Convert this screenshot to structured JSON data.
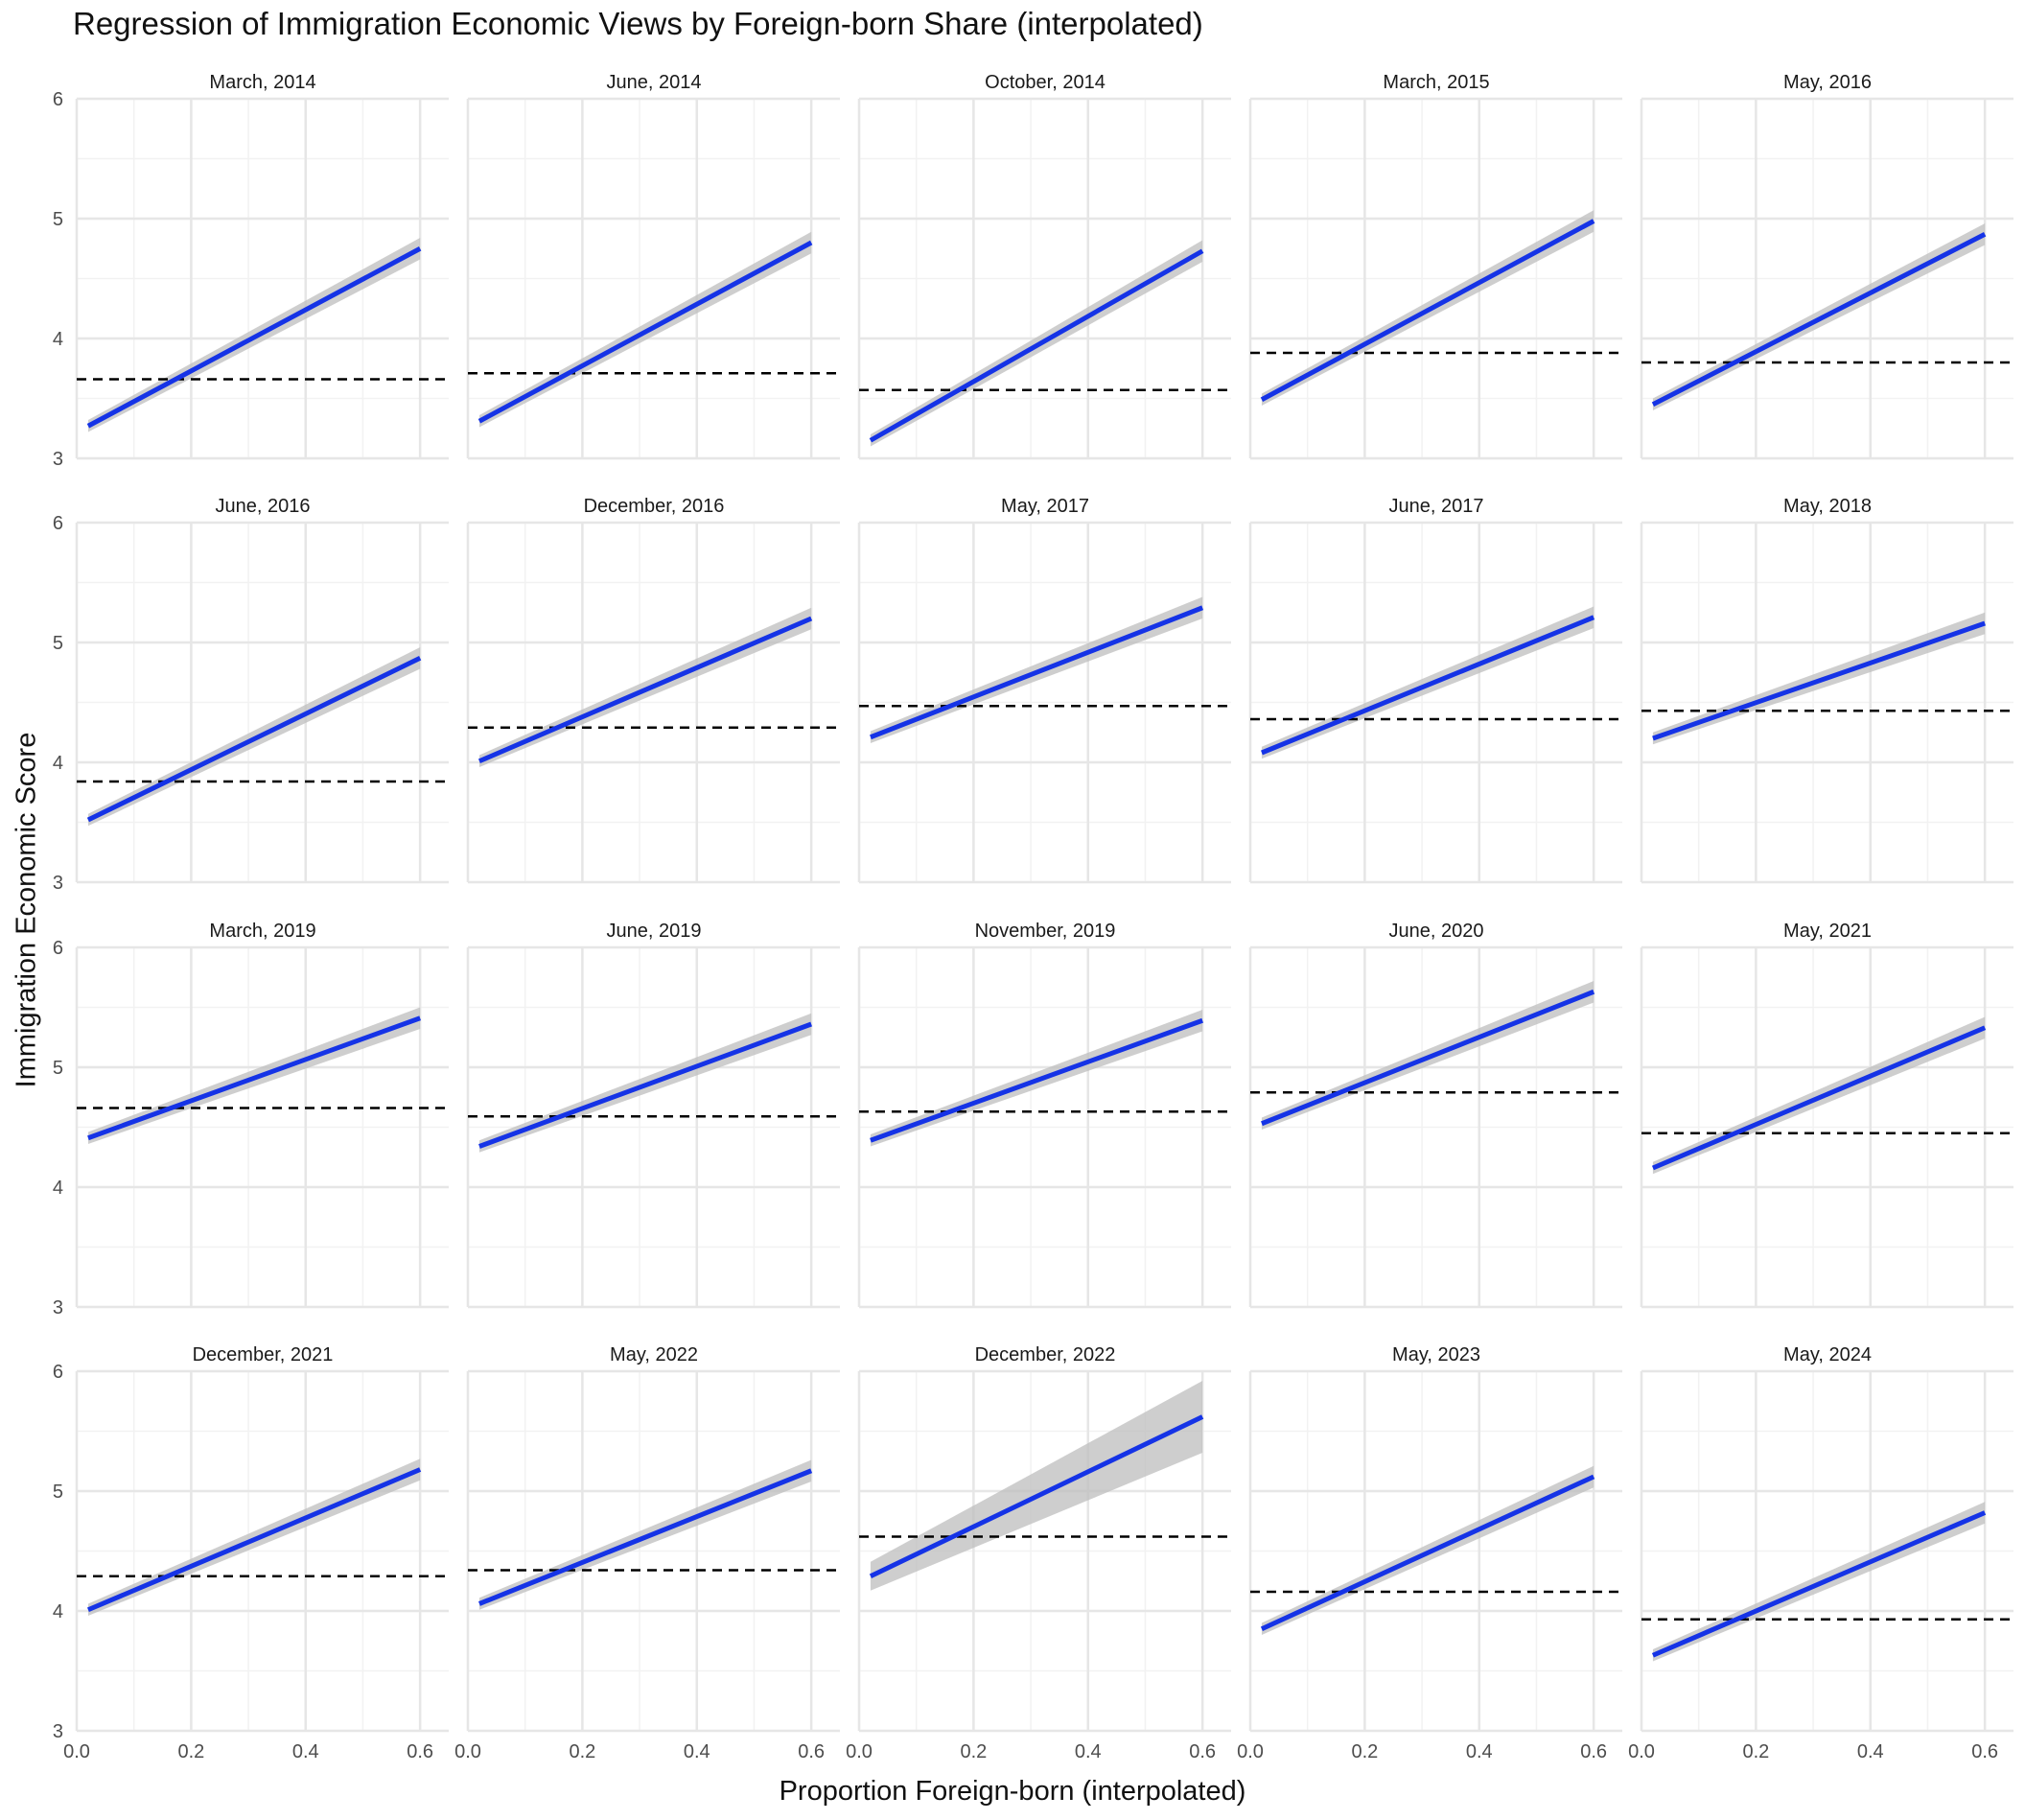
{
  "chart_data": {
    "type": "line",
    "title": "Regression of Immigration Economic Views by Foreign-born Share (interpolated)",
    "xlabel": "Proportion Foreign-born (interpolated)",
    "ylabel": "Immigration Economic Score",
    "xlim": [
      0,
      0.65
    ],
    "ylim": [
      3,
      6
    ],
    "x_ticks": [
      "0.0",
      "0.2",
      "0.4",
      "0.6"
    ],
    "y_ticks": [
      "3",
      "4",
      "5",
      "6"
    ],
    "grid": true,
    "legend": "none",
    "facets": [
      {
        "label": "March, 2014",
        "x_start": 0.02,
        "y_start": 3.27,
        "x_end": 0.6,
        "y_end": 4.75,
        "band_start": 0.05,
        "band_end": 0.09,
        "mean": 3.66
      },
      {
        "label": "June, 2014",
        "x_start": 0.02,
        "y_start": 3.31,
        "x_end": 0.6,
        "y_end": 4.8,
        "band_start": 0.05,
        "band_end": 0.09,
        "mean": 3.71
      },
      {
        "label": "October, 2014",
        "x_start": 0.02,
        "y_start": 3.15,
        "x_end": 0.6,
        "y_end": 4.73,
        "band_start": 0.05,
        "band_end": 0.09,
        "mean": 3.57
      },
      {
        "label": "March, 2015",
        "x_start": 0.02,
        "y_start": 3.49,
        "x_end": 0.6,
        "y_end": 4.98,
        "band_start": 0.05,
        "band_end": 0.09,
        "mean": 3.88
      },
      {
        "label": "May, 2016",
        "x_start": 0.02,
        "y_start": 3.45,
        "x_end": 0.6,
        "y_end": 4.87,
        "band_start": 0.05,
        "band_end": 0.09,
        "mean": 3.8
      },
      {
        "label": "June, 2016",
        "x_start": 0.02,
        "y_start": 3.52,
        "x_end": 0.6,
        "y_end": 4.87,
        "band_start": 0.05,
        "band_end": 0.09,
        "mean": 3.84
      },
      {
        "label": "December, 2016",
        "x_start": 0.02,
        "y_start": 4.01,
        "x_end": 0.6,
        "y_end": 5.2,
        "band_start": 0.05,
        "band_end": 0.09,
        "mean": 4.29
      },
      {
        "label": "May, 2017",
        "x_start": 0.02,
        "y_start": 4.21,
        "x_end": 0.6,
        "y_end": 5.29,
        "band_start": 0.05,
        "band_end": 0.09,
        "mean": 4.47
      },
      {
        "label": "June, 2017",
        "x_start": 0.02,
        "y_start": 4.08,
        "x_end": 0.6,
        "y_end": 5.21,
        "band_start": 0.05,
        "band_end": 0.09,
        "mean": 4.36
      },
      {
        "label": "May, 2018",
        "x_start": 0.02,
        "y_start": 4.2,
        "x_end": 0.6,
        "y_end": 5.16,
        "band_start": 0.05,
        "band_end": 0.09,
        "mean": 4.43
      },
      {
        "label": "March, 2019",
        "x_start": 0.02,
        "y_start": 4.41,
        "x_end": 0.6,
        "y_end": 5.41,
        "band_start": 0.05,
        "band_end": 0.09,
        "mean": 4.66
      },
      {
        "label": "June, 2019",
        "x_start": 0.02,
        "y_start": 4.34,
        "x_end": 0.6,
        "y_end": 5.36,
        "band_start": 0.05,
        "band_end": 0.09,
        "mean": 4.59
      },
      {
        "label": "November, 2019",
        "x_start": 0.02,
        "y_start": 4.39,
        "x_end": 0.6,
        "y_end": 5.39,
        "band_start": 0.05,
        "band_end": 0.09,
        "mean": 4.63
      },
      {
        "label": "June, 2020",
        "x_start": 0.02,
        "y_start": 4.53,
        "x_end": 0.6,
        "y_end": 5.63,
        "band_start": 0.05,
        "band_end": 0.09,
        "mean": 4.79
      },
      {
        "label": "May, 2021",
        "x_start": 0.02,
        "y_start": 4.16,
        "x_end": 0.6,
        "y_end": 5.33,
        "band_start": 0.05,
        "band_end": 0.09,
        "mean": 4.45
      },
      {
        "label": "December, 2021",
        "x_start": 0.02,
        "y_start": 4.01,
        "x_end": 0.6,
        "y_end": 5.18,
        "band_start": 0.05,
        "band_end": 0.09,
        "mean": 4.29
      },
      {
        "label": "May, 2022",
        "x_start": 0.02,
        "y_start": 4.06,
        "x_end": 0.6,
        "y_end": 5.17,
        "band_start": 0.05,
        "band_end": 0.09,
        "mean": 4.34
      },
      {
        "label": "December, 2022",
        "x_start": 0.02,
        "y_start": 4.29,
        "x_end": 0.6,
        "y_end": 5.62,
        "band_start": 0.12,
        "band_end": 0.3,
        "mean": 4.62
      },
      {
        "label": "May, 2023",
        "x_start": 0.02,
        "y_start": 3.85,
        "x_end": 0.6,
        "y_end": 5.12,
        "band_start": 0.05,
        "band_end": 0.09,
        "mean": 4.16
      },
      {
        "label": "May, 2024",
        "x_start": 0.02,
        "y_start": 3.63,
        "x_end": 0.6,
        "y_end": 4.82,
        "band_start": 0.05,
        "band_end": 0.09,
        "mean": 3.93
      }
    ],
    "colors": {
      "line": "#1533e6",
      "band": "#bdbdbd",
      "mean_line": "#000000",
      "grid_major": "#e6e6e6",
      "grid_minor": "#f2f2f2",
      "text": "#4d4d4d"
    }
  }
}
